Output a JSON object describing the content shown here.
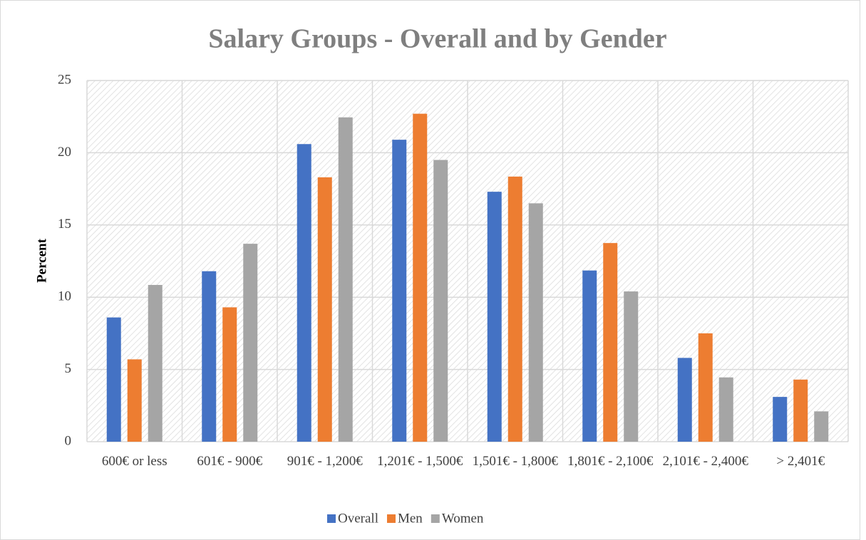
{
  "chart_data": {
    "type": "bar",
    "title": "Salary Groups - Overall and by Gender",
    "y_label": "Percent",
    "categories": [
      "600€ or less",
      "601€ - 900€",
      "901€ - 1,200€",
      "1,201€ - 1,500€",
      "1,501€ - 1,800€",
      "1,801€ - 2,100€",
      "2,101€ - 2,400€",
      "> 2,401€"
    ],
    "series": [
      {
        "name": "Overall",
        "color": "#4472c4",
        "values": [
          8.6,
          11.8,
          20.6,
          20.9,
          17.3,
          11.85,
          5.8,
          3.1
        ]
      },
      {
        "name": "Men",
        "color": "#ed7d31",
        "values": [
          5.7,
          9.3,
          18.3,
          22.7,
          18.35,
          13.75,
          7.5,
          4.3
        ]
      },
      {
        "name": "Women",
        "color": "#a5a5a5",
        "values": [
          10.85,
          13.7,
          22.45,
          19.5,
          16.5,
          10.4,
          4.45,
          2.1
        ]
      }
    ],
    "ylim": [
      0,
      25
    ],
    "yticks": [
      0,
      5,
      10,
      15,
      20,
      25
    ],
    "grid": true,
    "legend": "bottom"
  }
}
